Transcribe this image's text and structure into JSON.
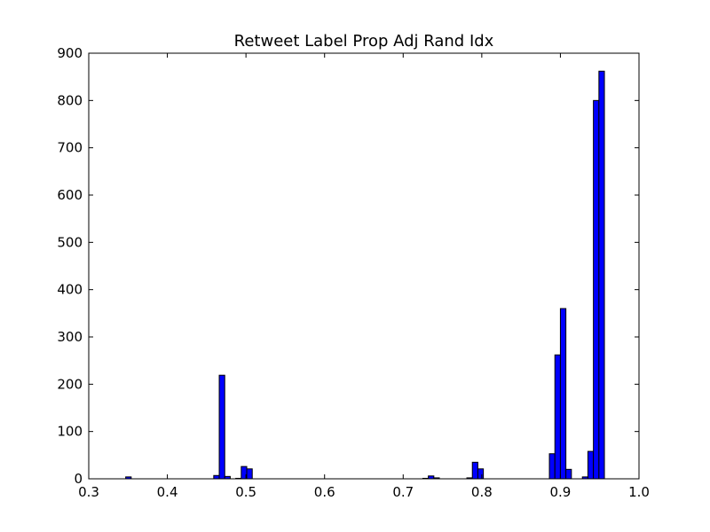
{
  "chart_data": {
    "type": "bar",
    "title": "Retweet Label Prop Adj Rand Idx",
    "xlabel": "",
    "ylabel": "",
    "xlim": [
      0.3,
      1.0
    ],
    "ylim": [
      0,
      900
    ],
    "xticks": [
      "0.3",
      "0.4",
      "0.5",
      "0.6",
      "0.7",
      "0.8",
      "0.9",
      "1.0"
    ],
    "yticks": [
      "0",
      "100",
      "200",
      "300",
      "400",
      "500",
      "600",
      "700",
      "800",
      "900"
    ],
    "grid": false,
    "bar_color": "#0000ff",
    "edge_color": "#000000",
    "bin_width": 0.007,
    "bins": [
      {
        "x": 0.347,
        "y": 4
      },
      {
        "x": 0.459,
        "y": 7
      },
      {
        "x": 0.466,
        "y": 219
      },
      {
        "x": 0.473,
        "y": 5
      },
      {
        "x": 0.487,
        "y": 1
      },
      {
        "x": 0.494,
        "y": 26
      },
      {
        "x": 0.501,
        "y": 21
      },
      {
        "x": 0.725,
        "y": 1
      },
      {
        "x": 0.732,
        "y": 6
      },
      {
        "x": 0.739,
        "y": 2
      },
      {
        "x": 0.781,
        "y": 2
      },
      {
        "x": 0.788,
        "y": 35
      },
      {
        "x": 0.795,
        "y": 21
      },
      {
        "x": 0.886,
        "y": 53
      },
      {
        "x": 0.893,
        "y": 262
      },
      {
        "x": 0.9,
        "y": 360
      },
      {
        "x": 0.907,
        "y": 20
      },
      {
        "x": 0.928,
        "y": 4
      },
      {
        "x": 0.935,
        "y": 58
      },
      {
        "x": 0.942,
        "y": 800
      },
      {
        "x": 0.949,
        "y": 862
      }
    ]
  }
}
